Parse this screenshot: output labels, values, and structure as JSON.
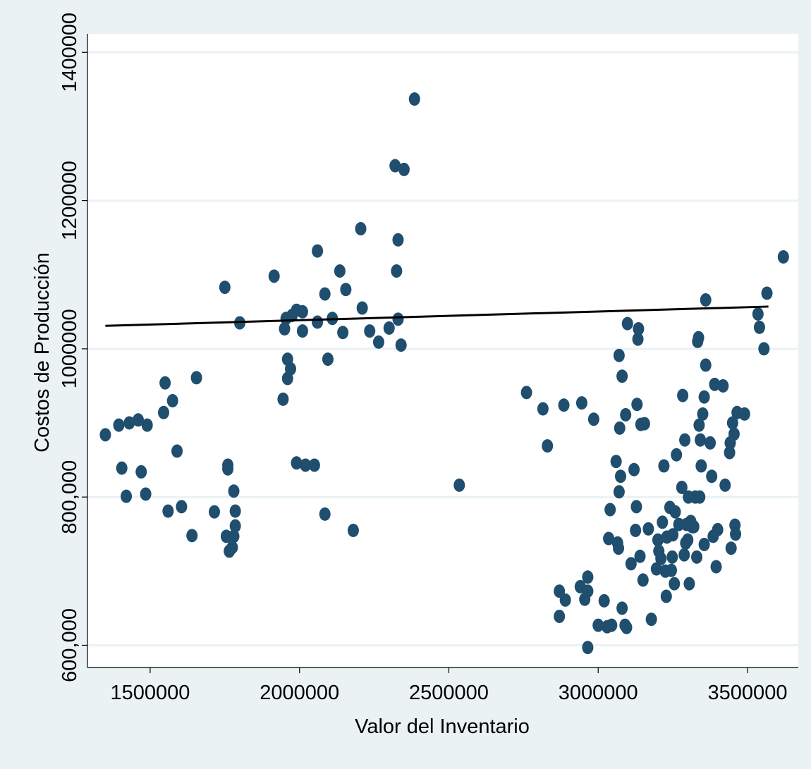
{
  "chart_data": {
    "type": "scatter",
    "title": "",
    "xlabel": "Valor del Inventario",
    "ylabel": "Costos de Producción",
    "xlim": [
      1290000,
      3670000
    ],
    "ylim": [
      570000,
      1425000
    ],
    "x_ticks": [
      1500000,
      2000000,
      2500000,
      3000000,
      3500000
    ],
    "x_tick_labels": [
      "1500000",
      "2000000",
      "2500000",
      "3000000",
      "3500000"
    ],
    "y_ticks": [
      600000,
      800000,
      1000000,
      1200000,
      1400000
    ],
    "y_tick_labels": [
      "600,000",
      "800,000",
      "1000000",
      "1200000",
      "1400000"
    ],
    "grid": true,
    "colors": {
      "points": "#1f4e6e",
      "fit_line": "#000000",
      "background": "#eaf2f3",
      "plot_area": "#ffffff",
      "grid": "#eaf2f3"
    },
    "fit_line": {
      "x": [
        1350000,
        3570000
      ],
      "y": [
        1031000,
        1057000
      ]
    },
    "series": [
      {
        "points": [
          [
            1350000,
            884000
          ],
          [
            1395000,
            897000
          ],
          [
            1430000,
            900000
          ],
          [
            1460000,
            904000
          ],
          [
            1490000,
            897000
          ],
          [
            1405000,
            839000
          ],
          [
            1420000,
            801000
          ],
          [
            1470000,
            834000
          ],
          [
            1485000,
            804000
          ],
          [
            1545000,
            914000
          ],
          [
            1550000,
            954000
          ],
          [
            1575000,
            930000
          ],
          [
            1560000,
            781000
          ],
          [
            1590000,
            862000
          ],
          [
            1605000,
            787000
          ],
          [
            1640000,
            748000
          ],
          [
            1655000,
            961000
          ],
          [
            1715000,
            780000
          ],
          [
            1750000,
            1083000
          ],
          [
            1760000,
            843000
          ],
          [
            1760000,
            838000
          ],
          [
            1755000,
            747000
          ],
          [
            1765000,
            727000
          ],
          [
            1775000,
            732000
          ],
          [
            1780000,
            808000
          ],
          [
            1785000,
            781000
          ],
          [
            1785000,
            761000
          ],
          [
            1780000,
            747000
          ],
          [
            1800000,
            1035000
          ],
          [
            1915000,
            1098000
          ],
          [
            1945000,
            932000
          ],
          [
            1950000,
            1027000
          ],
          [
            1955000,
            1041000
          ],
          [
            1960000,
            986000
          ],
          [
            1960000,
            960000
          ],
          [
            1970000,
            973000
          ],
          [
            1975000,
            1045000
          ],
          [
            1990000,
            1052000
          ],
          [
            2010000,
            1050000
          ],
          [
            2010000,
            1024000
          ],
          [
            1990000,
            846000
          ],
          [
            2020000,
            843000
          ],
          [
            2050000,
            843000
          ],
          [
            2060000,
            1132000
          ],
          [
            2060000,
            1036000
          ],
          [
            2085000,
            1074000
          ],
          [
            2085000,
            777000
          ],
          [
            2095000,
            986000
          ],
          [
            2110000,
            1041000
          ],
          [
            2135000,
            1105000
          ],
          [
            2145000,
            1022000
          ],
          [
            2155000,
            1080000
          ],
          [
            2180000,
            755000
          ],
          [
            2205000,
            1162000
          ],
          [
            2210000,
            1055000
          ],
          [
            2235000,
            1024000
          ],
          [
            2265000,
            1009000
          ],
          [
            2300000,
            1028000
          ],
          [
            2320000,
            1247000
          ],
          [
            2325000,
            1105000
          ],
          [
            2330000,
            1040000
          ],
          [
            2330000,
            1147000
          ],
          [
            2340000,
            1005000
          ],
          [
            2350000,
            1242000
          ],
          [
            2385000,
            1337000
          ],
          [
            2535000,
            816000
          ],
          [
            2760000,
            941000
          ],
          [
            2815000,
            919000
          ],
          [
            2830000,
            869000
          ],
          [
            2870000,
            673000
          ],
          [
            2870000,
            639000
          ],
          [
            2885000,
            924000
          ],
          [
            2890000,
            661000
          ],
          [
            2940000,
            679000
          ],
          [
            2945000,
            927000
          ],
          [
            2955000,
            662000
          ],
          [
            2965000,
            692000
          ],
          [
            2965000,
            673000
          ],
          [
            2965000,
            597000
          ],
          [
            2985000,
            905000
          ],
          [
            3000000,
            627000
          ],
          [
            3020000,
            660000
          ],
          [
            3030000,
            625000
          ],
          [
            3035000,
            744000
          ],
          [
            3040000,
            783000
          ],
          [
            3045000,
            627000
          ],
          [
            3060000,
            848000
          ],
          [
            3065000,
            738000
          ],
          [
            3068000,
            731000
          ],
          [
            3070000,
            807000
          ],
          [
            3070000,
            991000
          ],
          [
            3072000,
            893000
          ],
          [
            3075000,
            828000
          ],
          [
            3080000,
            650000
          ],
          [
            3080000,
            963000
          ],
          [
            3090000,
            627000
          ],
          [
            3095000,
            624000
          ],
          [
            3092000,
            911000
          ],
          [
            3098000,
            1034000
          ],
          [
            3110000,
            710000
          ],
          [
            3120000,
            837000
          ],
          [
            3125000,
            755000
          ],
          [
            3128000,
            787000
          ],
          [
            3130000,
            925000
          ],
          [
            3133000,
            1013000
          ],
          [
            3135000,
            1027000
          ],
          [
            3140000,
            720000
          ],
          [
            3143000,
            898000
          ],
          [
            3150000,
            688000
          ],
          [
            3155000,
            899000
          ],
          [
            3168000,
            757000
          ],
          [
            3178000,
            635000
          ],
          [
            3195000,
            703000
          ],
          [
            3200000,
            742000
          ],
          [
            3203000,
            727000
          ],
          [
            3210000,
            717000
          ],
          [
            3215000,
            766000
          ],
          [
            3220000,
            842000
          ],
          [
            3225000,
            700000
          ],
          [
            3228000,
            666000
          ],
          [
            3230000,
            746000
          ],
          [
            3240000,
            786000
          ],
          [
            3245000,
            701000
          ],
          [
            3248000,
            719000
          ],
          [
            3250000,
            749000
          ],
          [
            3255000,
            683000
          ],
          [
            3258000,
            780000
          ],
          [
            3262000,
            857000
          ],
          [
            3270000,
            763000
          ],
          [
            3280000,
            813000
          ],
          [
            3283000,
            937000
          ],
          [
            3288000,
            722000
          ],
          [
            3290000,
            877000
          ],
          [
            3293000,
            738000
          ],
          [
            3296000,
            763000
          ],
          [
            3300000,
            742000
          ],
          [
            3302000,
            800000
          ],
          [
            3305000,
            683000
          ],
          [
            3310000,
            767000
          ],
          [
            3315000,
            760000
          ],
          [
            3320000,
            760000
          ],
          [
            3325000,
            800000
          ],
          [
            3330000,
            719000
          ],
          [
            3333000,
            1010000
          ],
          [
            3336000,
            1015000
          ],
          [
            3338000,
            897000
          ],
          [
            3340000,
            800000
          ],
          [
            3342000,
            877000
          ],
          [
            3345000,
            842000
          ],
          [
            3350000,
            912000
          ],
          [
            3355000,
            935000
          ],
          [
            3355000,
            736000
          ],
          [
            3360000,
            978000
          ],
          [
            3360000,
            1066000
          ],
          [
            3375000,
            873000
          ],
          [
            3380000,
            828000
          ],
          [
            3385000,
            747000
          ],
          [
            3390000,
            952000
          ],
          [
            3395000,
            706000
          ],
          [
            3400000,
            756000
          ],
          [
            3418000,
            950000
          ],
          [
            3425000,
            816000
          ],
          [
            3440000,
            860000
          ],
          [
            3442000,
            873000
          ],
          [
            3445000,
            731000
          ],
          [
            3450000,
            900000
          ],
          [
            3455000,
            885000
          ],
          [
            3458000,
            762000
          ],
          [
            3460000,
            750000
          ],
          [
            3465000,
            914000
          ],
          [
            3490000,
            912000
          ],
          [
            3535000,
            1047000
          ],
          [
            3540000,
            1029000
          ],
          [
            3555000,
            1000000
          ],
          [
            3565000,
            1075000
          ],
          [
            3620000,
            1124000
          ]
        ]
      }
    ]
  }
}
